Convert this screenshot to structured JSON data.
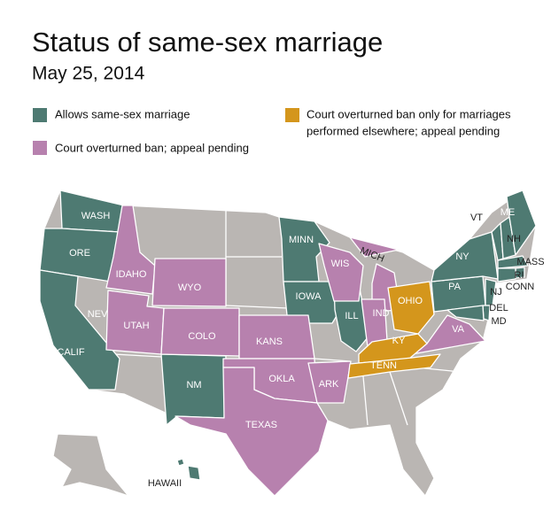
{
  "header": {
    "title": "Status of same-sex marriage",
    "subtitle": "May 25, 2014"
  },
  "legend": [
    {
      "label": [
        "Allows same-sex marriage"
      ],
      "color": "#4e7a72",
      "states": [
        "WASH",
        "ORE",
        "CALIF",
        "NM",
        "MINN",
        "IOWA",
        "ILL",
        "PA",
        "NY",
        "VT",
        "NH",
        "ME",
        "MASS",
        "RI",
        "CONN",
        "NJ",
        "DEL",
        "MD",
        "HAWAII"
      ]
    },
    {
      "label": [
        "Court overturned ban; appeal pending"
      ],
      "color": "#b781ae",
      "states": [
        "IDAHO",
        "UTAH",
        "WYO",
        "COLO",
        "KANS",
        "OKLA",
        "TEXAS",
        "ARK",
        "WIS",
        "MICH",
        "IND",
        "VA"
      ]
    },
    {
      "label": [
        "Court overturned ban only for marriages",
        "performed elsewhere; appeal pending"
      ],
      "color": "#d4961c",
      "states": [
        "OHIO",
        "KY",
        "TENN"
      ]
    }
  ],
  "map": {
    "other_states": [
      "NEV"
    ]
  }
}
